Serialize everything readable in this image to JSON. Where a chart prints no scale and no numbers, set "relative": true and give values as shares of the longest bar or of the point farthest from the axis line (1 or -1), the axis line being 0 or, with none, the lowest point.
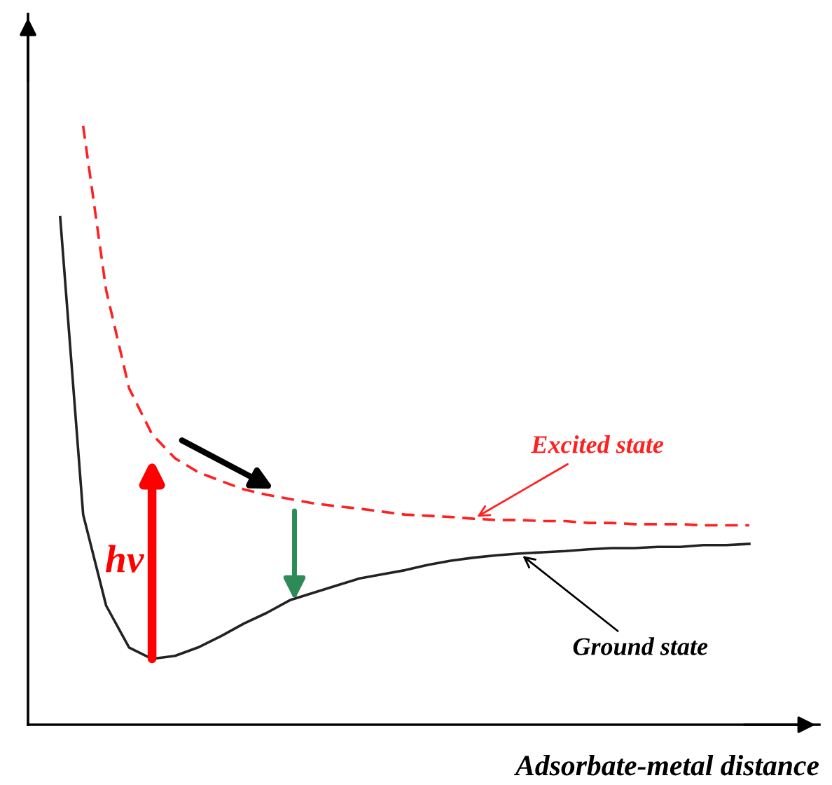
{
  "chart_data": {
    "type": "line",
    "relative": true,
    "xlabel": "Adsorbate-metal distance",
    "categories": [
      null,
      null,
      null,
      null,
      null,
      null,
      null,
      null,
      null,
      null,
      null,
      null,
      null,
      null,
      null,
      null,
      null,
      null,
      null,
      null,
      null,
      null,
      null,
      null,
      null,
      null,
      null,
      null,
      null,
      null,
      null
    ],
    "series": [
      {
        "color": "#222222",
        "line_style": "solid",
        "values": [
          0.848,
          0.351,
          0.199,
          0.129,
          0.11,
          0.115,
          0.129,
          0.148,
          0.169,
          0.187,
          0.208,
          0.22,
          0.232,
          0.244,
          0.251,
          0.258,
          0.267,
          0.274,
          0.279,
          0.283,
          0.286,
          0.288,
          0.29,
          0.293,
          0.295,
          0.295,
          0.297,
          0.297,
          0.3,
          0.3,
          0.302
        ]
      },
      {
        "color": "#ff2020",
        "line_style": "dashed",
        "values": [
          null,
          1.0,
          0.726,
          0.562,
          0.485,
          0.445,
          0.422,
          0.407,
          0.393,
          0.384,
          0.377,
          0.37,
          0.365,
          0.361,
          0.356,
          0.351,
          0.349,
          0.347,
          0.344,
          0.342,
          0.342,
          0.34,
          0.34,
          0.337,
          0.337,
          0.335,
          0.335,
          0.335,
          0.333,
          0.333,
          0.333
        ]
      }
    ],
    "annotations": [
      {
        "text": "Excited state",
        "y": 0.344
      },
      "Ground state",
      "hν"
    ]
  }
}
